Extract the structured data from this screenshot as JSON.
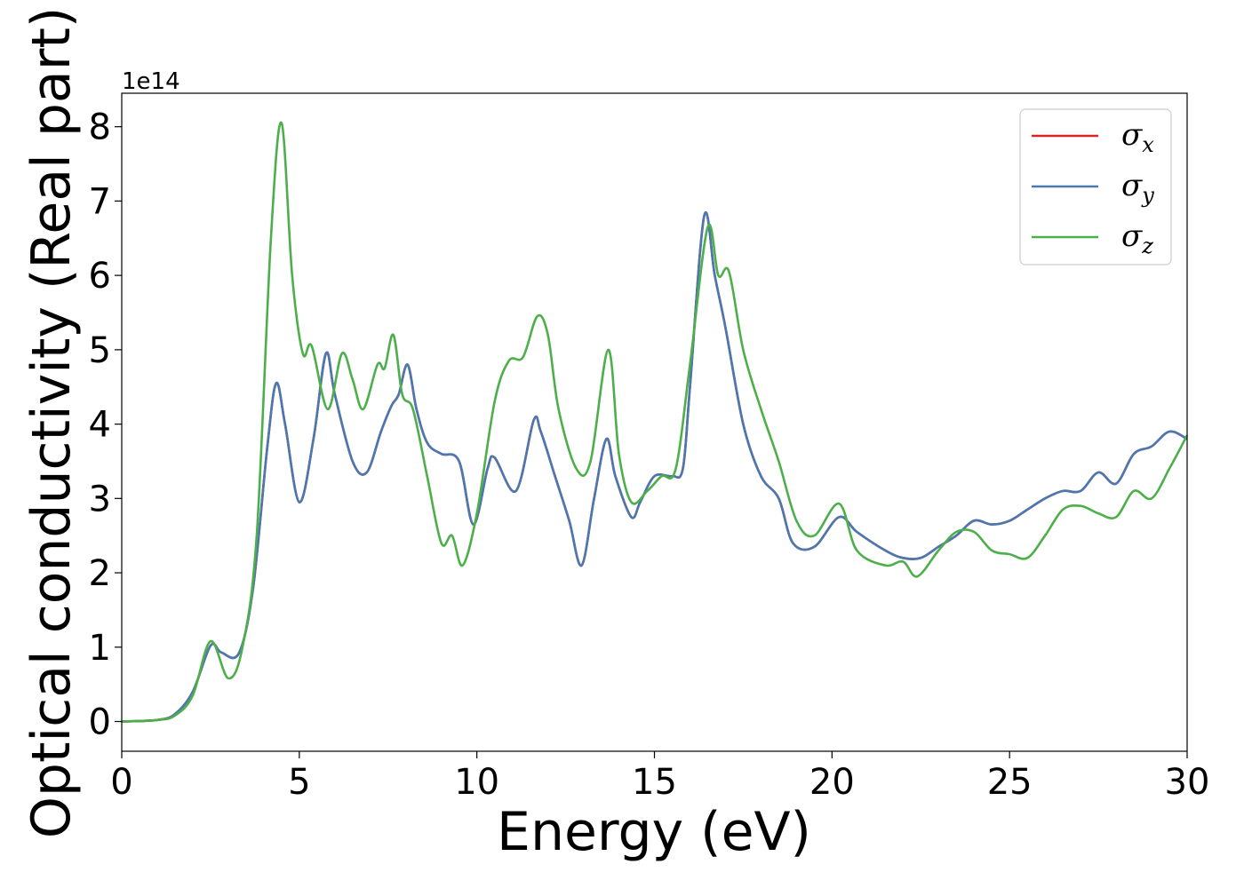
{
  "chart_data": {
    "type": "line",
    "title": "",
    "xlabel": "Energy (eV)",
    "ylabel": "Optical conductivity (Real part)",
    "y_offset_label": "1e14",
    "xlim": [
      0,
      30
    ],
    "ylim": [
      -0.4,
      8.45
    ],
    "xticks": [
      0,
      5,
      10,
      15,
      20,
      25,
      30
    ],
    "yticks": [
      0,
      1,
      2,
      3,
      4,
      5,
      6,
      7,
      8
    ],
    "grid": false,
    "legend_position": "top-right",
    "series": [
      {
        "name": "σx",
        "symbol": "σ",
        "subscript": "x",
        "color": "#d62728",
        "points": [
          [
            0,
            0
          ],
          [
            1,
            0.02
          ],
          [
            1.5,
            0.1
          ],
          [
            2,
            0.4
          ],
          [
            2.5,
            1.02
          ],
          [
            2.8,
            0.93
          ],
          [
            3.3,
            0.92
          ],
          [
            3.7,
            1.8
          ],
          [
            4.1,
            3.7
          ],
          [
            4.35,
            4.55
          ],
          [
            4.6,
            4.0
          ],
          [
            5.0,
            2.95
          ],
          [
            5.4,
            3.8
          ],
          [
            5.75,
            4.95
          ],
          [
            6.0,
            4.4
          ],
          [
            6.5,
            3.5
          ],
          [
            6.9,
            3.35
          ],
          [
            7.3,
            3.9
          ],
          [
            7.6,
            4.25
          ],
          [
            7.8,
            4.4
          ],
          [
            8.05,
            4.8
          ],
          [
            8.3,
            4.2
          ],
          [
            8.6,
            3.75
          ],
          [
            9.0,
            3.6
          ],
          [
            9.5,
            3.5
          ],
          [
            9.9,
            2.65
          ],
          [
            10.3,
            3.4
          ],
          [
            10.5,
            3.55
          ],
          [
            11.1,
            3.1
          ],
          [
            11.6,
            4.05
          ],
          [
            11.8,
            3.9
          ],
          [
            12.2,
            3.3
          ],
          [
            12.6,
            2.7
          ],
          [
            12.95,
            2.1
          ],
          [
            13.3,
            3.0
          ],
          [
            13.65,
            3.8
          ],
          [
            13.9,
            3.3
          ],
          [
            14.35,
            2.75
          ],
          [
            14.6,
            2.95
          ],
          [
            15.0,
            3.3
          ],
          [
            15.5,
            3.3
          ],
          [
            15.8,
            3.4
          ],
          [
            16.0,
            4.5
          ],
          [
            16.4,
            6.8
          ],
          [
            16.7,
            6.0
          ],
          [
            17.0,
            5.3
          ],
          [
            17.5,
            4.0
          ],
          [
            18.0,
            3.3
          ],
          [
            18.5,
            3.0
          ],
          [
            18.9,
            2.4
          ],
          [
            19.5,
            2.35
          ],
          [
            20.2,
            2.75
          ],
          [
            20.7,
            2.55
          ],
          [
            21.5,
            2.3
          ],
          [
            22.0,
            2.2
          ],
          [
            22.5,
            2.2
          ],
          [
            23.0,
            2.35
          ],
          [
            23.5,
            2.5
          ],
          [
            24.0,
            2.7
          ],
          [
            24.5,
            2.65
          ],
          [
            25.0,
            2.7
          ],
          [
            25.5,
            2.85
          ],
          [
            26.0,
            3.0
          ],
          [
            26.5,
            3.1
          ],
          [
            27.0,
            3.1
          ],
          [
            27.5,
            3.35
          ],
          [
            28.0,
            3.2
          ],
          [
            28.5,
            3.6
          ],
          [
            29.0,
            3.7
          ],
          [
            29.5,
            3.9
          ],
          [
            30.0,
            3.8
          ]
        ]
      },
      {
        "name": "σy",
        "symbol": "σ",
        "subscript": "y",
        "color": "#4a78b0",
        "points": [
          [
            0,
            0
          ],
          [
            1,
            0.02
          ],
          [
            1.5,
            0.1
          ],
          [
            2,
            0.4
          ],
          [
            2.5,
            1.02
          ],
          [
            2.8,
            0.93
          ],
          [
            3.3,
            0.92
          ],
          [
            3.7,
            1.8
          ],
          [
            4.1,
            3.7
          ],
          [
            4.35,
            4.55
          ],
          [
            4.6,
            4.0
          ],
          [
            5.0,
            2.95
          ],
          [
            5.4,
            3.8
          ],
          [
            5.75,
            4.95
          ],
          [
            6.0,
            4.4
          ],
          [
            6.5,
            3.5
          ],
          [
            6.9,
            3.35
          ],
          [
            7.3,
            3.9
          ],
          [
            7.6,
            4.25
          ],
          [
            7.8,
            4.4
          ],
          [
            8.05,
            4.8
          ],
          [
            8.3,
            4.2
          ],
          [
            8.6,
            3.75
          ],
          [
            9.0,
            3.6
          ],
          [
            9.5,
            3.5
          ],
          [
            9.9,
            2.65
          ],
          [
            10.3,
            3.4
          ],
          [
            10.5,
            3.55
          ],
          [
            11.1,
            3.1
          ],
          [
            11.6,
            4.05
          ],
          [
            11.8,
            3.9
          ],
          [
            12.2,
            3.3
          ],
          [
            12.6,
            2.7
          ],
          [
            12.95,
            2.1
          ],
          [
            13.3,
            3.0
          ],
          [
            13.65,
            3.8
          ],
          [
            13.9,
            3.3
          ],
          [
            14.35,
            2.75
          ],
          [
            14.6,
            2.95
          ],
          [
            15.0,
            3.3
          ],
          [
            15.5,
            3.3
          ],
          [
            15.8,
            3.4
          ],
          [
            16.0,
            4.5
          ],
          [
            16.4,
            6.8
          ],
          [
            16.7,
            6.0
          ],
          [
            17.0,
            5.3
          ],
          [
            17.5,
            4.0
          ],
          [
            18.0,
            3.3
          ],
          [
            18.5,
            3.0
          ],
          [
            18.9,
            2.4
          ],
          [
            19.5,
            2.35
          ],
          [
            20.2,
            2.75
          ],
          [
            20.7,
            2.55
          ],
          [
            21.5,
            2.3
          ],
          [
            22.0,
            2.2
          ],
          [
            22.5,
            2.2
          ],
          [
            23.0,
            2.35
          ],
          [
            23.5,
            2.5
          ],
          [
            24.0,
            2.7
          ],
          [
            24.5,
            2.65
          ],
          [
            25.0,
            2.7
          ],
          [
            25.5,
            2.85
          ],
          [
            26.0,
            3.0
          ],
          [
            26.5,
            3.1
          ],
          [
            27.0,
            3.1
          ],
          [
            27.5,
            3.35
          ],
          [
            28.0,
            3.2
          ],
          [
            28.5,
            3.6
          ],
          [
            29.0,
            3.7
          ],
          [
            29.5,
            3.9
          ],
          [
            30.0,
            3.8
          ]
        ]
      },
      {
        "name": "σz",
        "symbol": "σ",
        "subscript": "z",
        "color": "#4daf4a",
        "points": [
          [
            0,
            0
          ],
          [
            1,
            0.02
          ],
          [
            1.5,
            0.08
          ],
          [
            2,
            0.35
          ],
          [
            2.5,
            1.08
          ],
          [
            3.0,
            0.58
          ],
          [
            3.4,
            1.0
          ],
          [
            3.8,
            2.5
          ],
          [
            4.2,
            6.5
          ],
          [
            4.5,
            8.05
          ],
          [
            4.8,
            6.0
          ],
          [
            5.1,
            4.95
          ],
          [
            5.35,
            5.05
          ],
          [
            5.8,
            4.2
          ],
          [
            6.2,
            4.95
          ],
          [
            6.5,
            4.6
          ],
          [
            6.8,
            4.2
          ],
          [
            7.2,
            4.8
          ],
          [
            7.4,
            4.75
          ],
          [
            7.65,
            5.2
          ],
          [
            7.9,
            4.4
          ],
          [
            8.2,
            4.2
          ],
          [
            8.6,
            3.3
          ],
          [
            9.0,
            2.4
          ],
          [
            9.3,
            2.5
          ],
          [
            9.6,
            2.1
          ],
          [
            10.0,
            2.8
          ],
          [
            10.5,
            4.3
          ],
          [
            10.9,
            4.85
          ],
          [
            11.3,
            4.9
          ],
          [
            11.7,
            5.45
          ],
          [
            12.0,
            5.2
          ],
          [
            12.3,
            4.2
          ],
          [
            12.8,
            3.4
          ],
          [
            13.2,
            3.5
          ],
          [
            13.7,
            5.0
          ],
          [
            14.0,
            3.6
          ],
          [
            14.35,
            2.95
          ],
          [
            14.8,
            3.1
          ],
          [
            15.2,
            3.3
          ],
          [
            15.6,
            3.4
          ],
          [
            16.0,
            4.8
          ],
          [
            16.5,
            6.65
          ],
          [
            16.8,
            6.0
          ],
          [
            17.1,
            6.05
          ],
          [
            17.5,
            5.0
          ],
          [
            18.0,
            4.2
          ],
          [
            18.5,
            3.5
          ],
          [
            19.0,
            2.7
          ],
          [
            19.5,
            2.5
          ],
          [
            20.2,
            2.93
          ],
          [
            20.7,
            2.3
          ],
          [
            21.5,
            2.1
          ],
          [
            22.0,
            2.15
          ],
          [
            22.4,
            1.95
          ],
          [
            23.0,
            2.3
          ],
          [
            23.5,
            2.55
          ],
          [
            24.0,
            2.55
          ],
          [
            24.5,
            2.3
          ],
          [
            25.0,
            2.25
          ],
          [
            25.5,
            2.2
          ],
          [
            26.0,
            2.5
          ],
          [
            26.5,
            2.85
          ],
          [
            27.0,
            2.9
          ],
          [
            27.5,
            2.8
          ],
          [
            28.0,
            2.75
          ],
          [
            28.5,
            3.1
          ],
          [
            29.0,
            3.0
          ],
          [
            29.5,
            3.4
          ],
          [
            30.0,
            3.85
          ]
        ]
      }
    ]
  }
}
